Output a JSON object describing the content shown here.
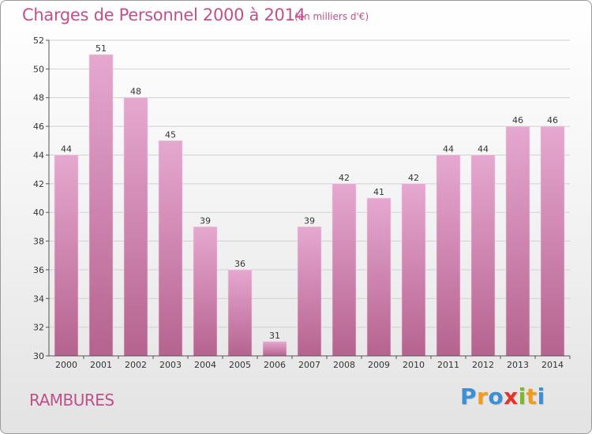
{
  "header": {
    "title": "Charges de Personnel 2000 à 2014",
    "subtitle": "(en milliers d'€)"
  },
  "footer": {
    "commune": "RAMBURES",
    "logo": "Proxiti",
    "logo_colors": [
      "#3a8fd6",
      "#f29a1c",
      "#3a8fd6",
      "#e8332a",
      "#7ab929",
      "#f29a1c",
      "#3a8fd6"
    ]
  },
  "colors": {
    "title": "#c0508a",
    "bar_top": "#e6a8d0",
    "bar_bottom": "#b5638f",
    "grid": "#d0d0d0"
  },
  "chart_data": {
    "type": "bar",
    "categories": [
      "2000",
      "2001",
      "2002",
      "2003",
      "2004",
      "2005",
      "2006",
      "2007",
      "2008",
      "2009",
      "2010",
      "2011",
      "2012",
      "2013",
      "2014"
    ],
    "values": [
      44,
      51,
      48,
      45,
      39,
      36,
      31,
      39,
      42,
      41,
      42,
      44,
      44,
      46,
      46
    ],
    "ylim": [
      30,
      52
    ],
    "yticks": [
      30,
      32,
      34,
      36,
      38,
      40,
      42,
      44,
      46,
      48,
      50,
      52
    ],
    "grid": true,
    "data_labels": true
  }
}
